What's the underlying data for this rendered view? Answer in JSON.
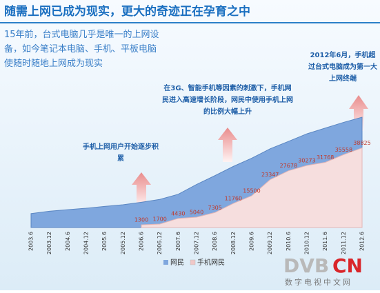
{
  "chart_data": {
    "type": "area",
    "title": "随需上网已成为现实，更大的奇迹正在孕育之中",
    "intro": "15年前，台式电脑几乎是唯一的上网设备，如今笔记本电脑、手机、平板电脑使随时随地上网成为现实",
    "annotations": [
      "手机上网用户开始逐步积累",
      "在3G、智能手机等因素的刺激下，手机网民进入高速增长阶段，网民中使用手机上网的比例大幅上升",
      "2012年6月，手机超过台式电脑成为第一大上网终端"
    ],
    "categories": [
      "2003.6",
      "2003.12",
      "2004.6",
      "2004.12",
      "2005.6",
      "2005.12",
      "2006.6",
      "2006.12",
      "2007.6",
      "2007.12",
      "2008.6",
      "2008.12",
      "2009.6",
      "2009.12",
      "2010.6",
      "2010.12",
      "2011.6",
      "2011.12",
      "2012.6"
    ],
    "series": [
      {
        "name": "网民",
        "color": "#7fa7de",
        "values": [
          6800,
          7950,
          8700,
          9400,
          10300,
          11100,
          12300,
          13700,
          16200,
          21000,
          25300,
          29800,
          33800,
          38400,
          42000,
          45700,
          48500,
          51300,
          53800
        ]
      },
      {
        "name": "手机网民",
        "color": "#f6dede",
        "values": [
          null,
          null,
          null,
          null,
          null,
          null,
          1300,
          1700,
          4430,
          5040,
          7305,
          11760,
          15500,
          23347,
          27678,
          30273,
          31768,
          35558,
          38825
        ]
      }
    ],
    "logo": {
      "brand_a": "DVB",
      "brand_b": "CN",
      "subtitle": "数字电视中文网"
    }
  }
}
